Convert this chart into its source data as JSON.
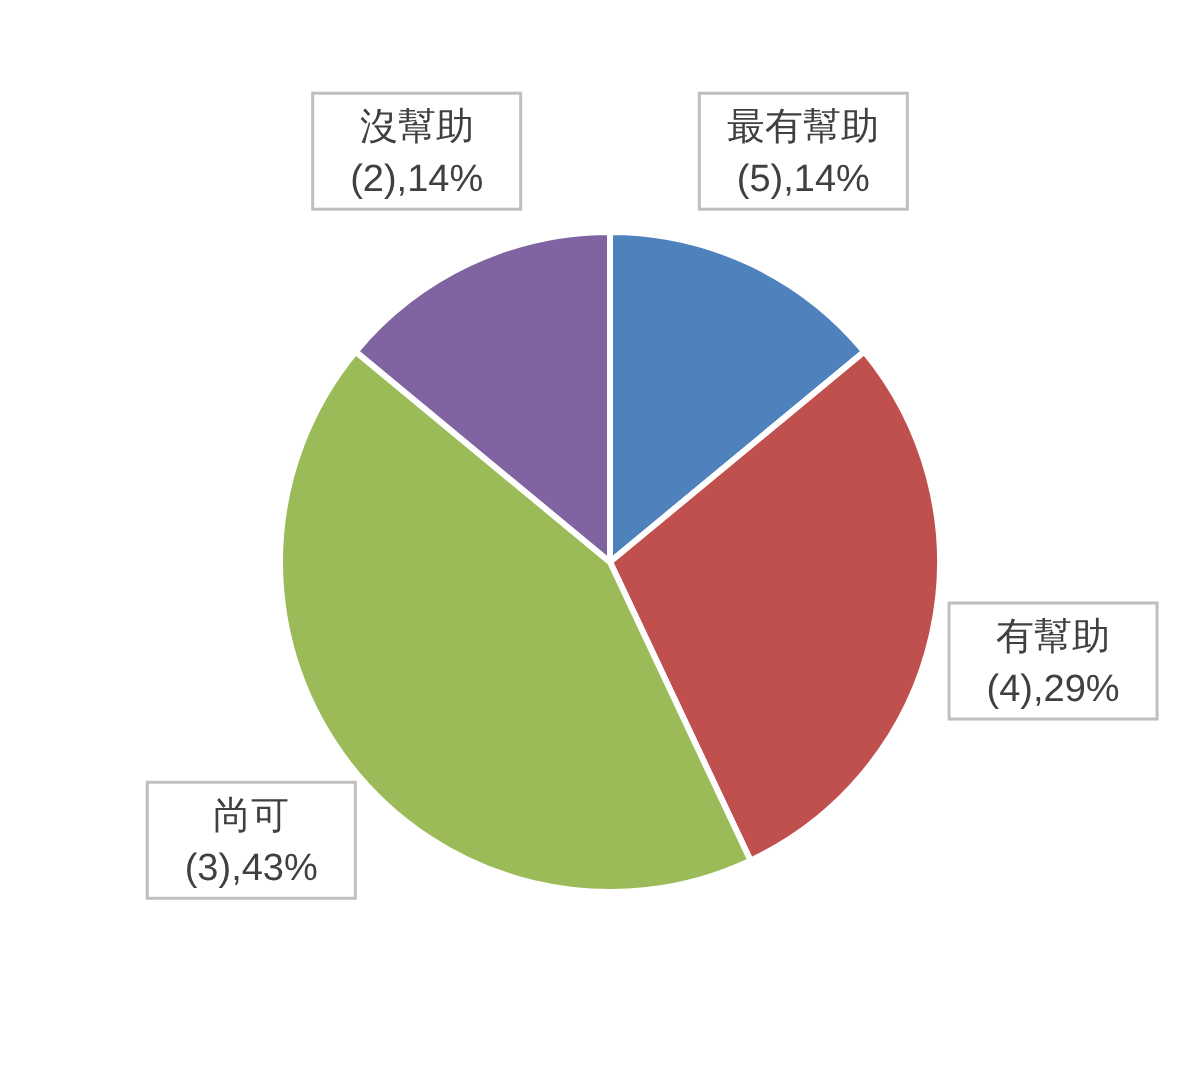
{
  "chart_data": {
    "type": "pie",
    "categories": [
      "最有幫助",
      "有幫助",
      "尚可",
      "沒幫助"
    ],
    "values": [
      14,
      29,
      43,
      14
    ],
    "colors": [
      "#4f81bd",
      "#c0504d",
      "#9bbb59",
      "#8064a2"
    ],
    "value_labels": [
      "(5),14%",
      "(4),29%",
      "(3),43%",
      "(2),14%"
    ],
    "legend": false
  }
}
